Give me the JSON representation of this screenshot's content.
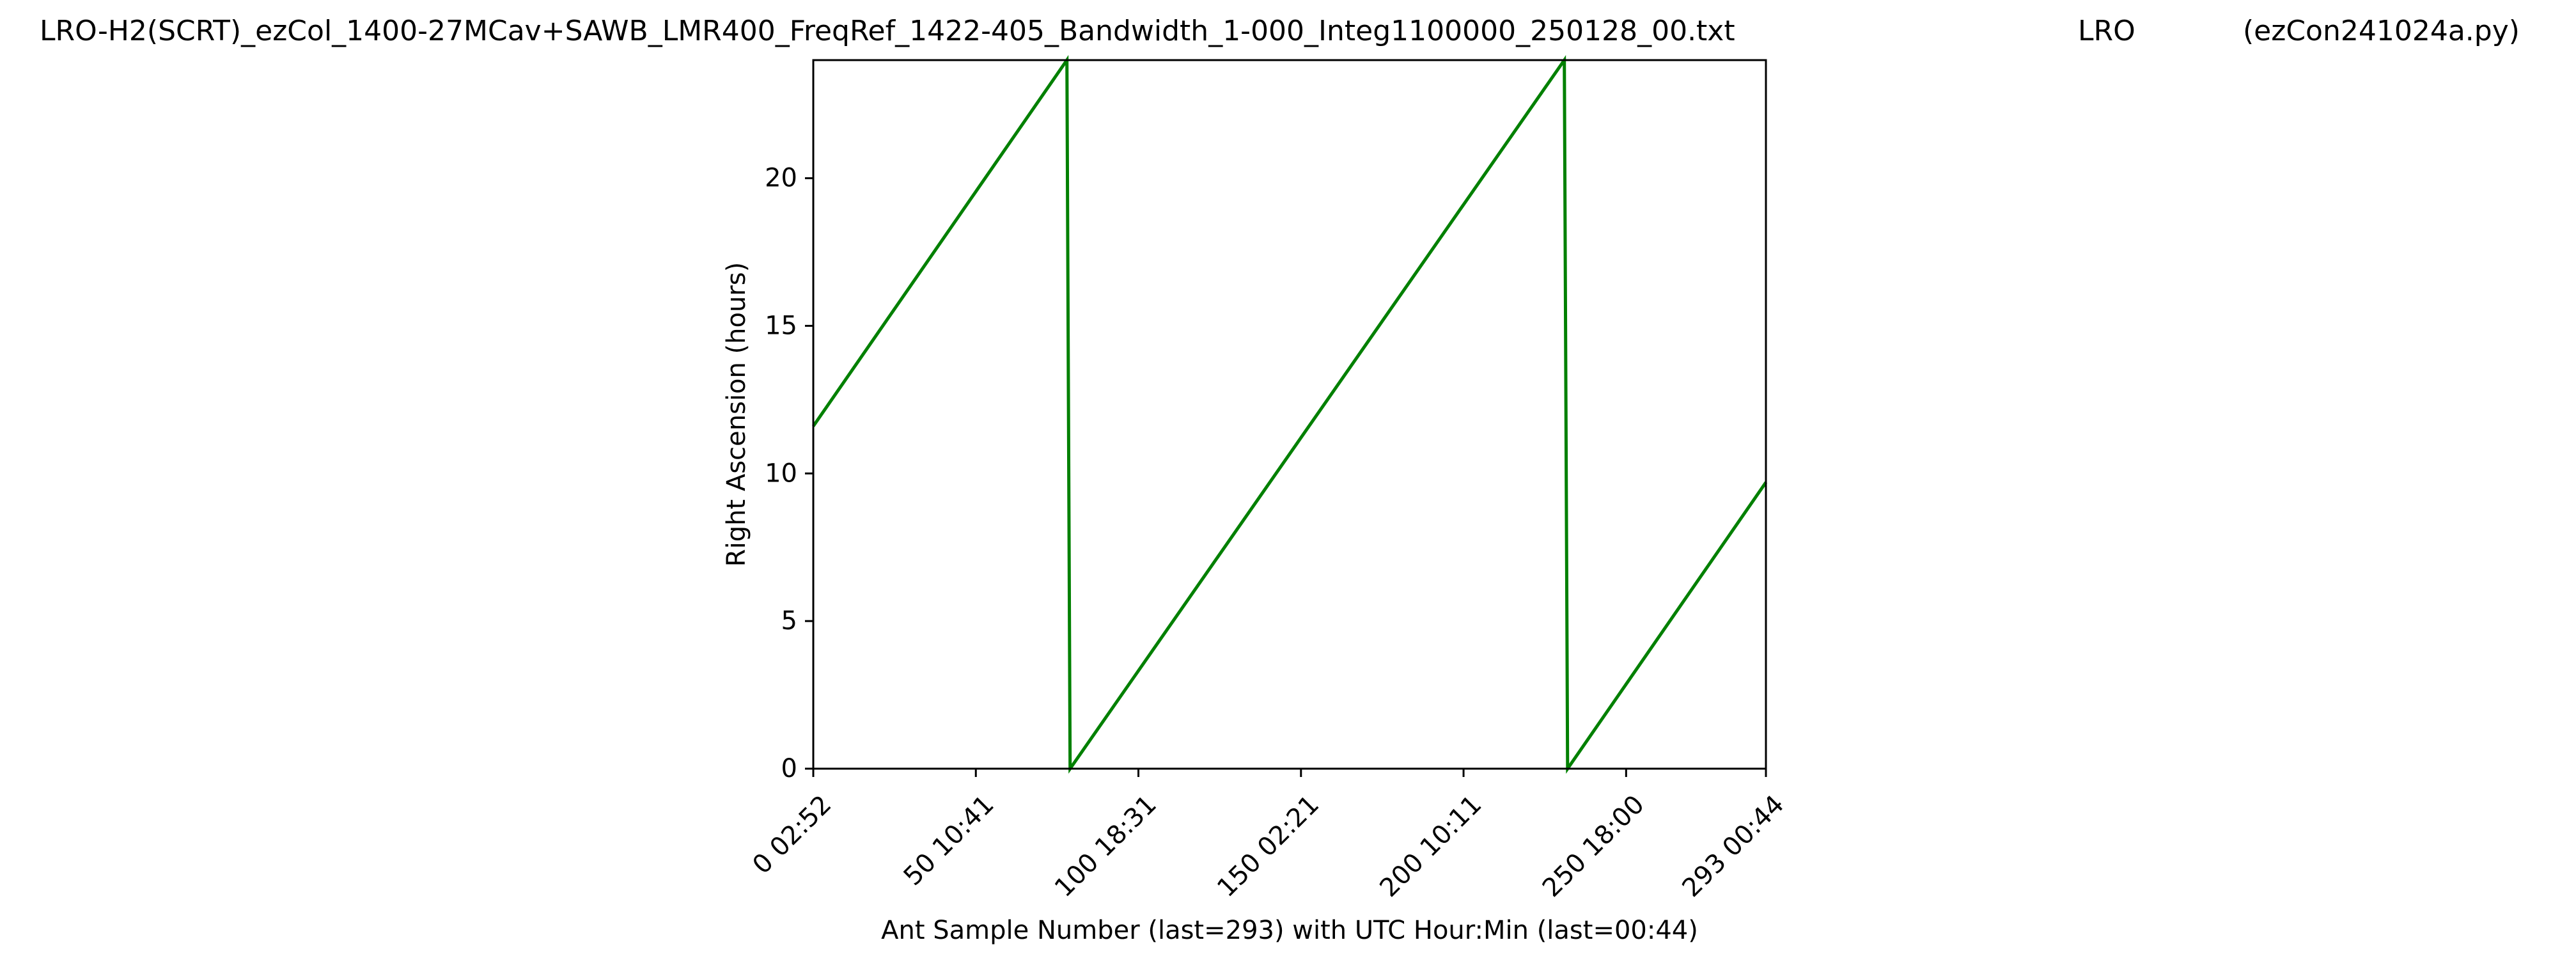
{
  "header": {
    "filename": "LRO-H2(SCRT)_ezCol_1400-27MCav+SAWB_LMR400_FreqRef_1422-405_Bandwidth_1-000_Integ1100000_250128_00.txt",
    "site": "LRO",
    "program": "(ezCon241024a.py)"
  },
  "chart_data": {
    "type": "line",
    "xlabel": "Ant Sample Number (last=293) with UTC Hour:Min (last=00:44)",
    "ylabel": "Right Ascension (hours)",
    "xlim": [
      0,
      293
    ],
    "ylim": [
      0,
      24
    ],
    "grid": false,
    "legend": "none",
    "line_color": "#008000",
    "x_ticks": [
      {
        "value": 0,
        "label": "0  02:52"
      },
      {
        "value": 50,
        "label": "50  10:41"
      },
      {
        "value": 100,
        "label": "100  18:31"
      },
      {
        "value": 150,
        "label": "150  02:21"
      },
      {
        "value": 200,
        "label": "200  10:11"
      },
      {
        "value": 250,
        "label": "250  18:00"
      },
      {
        "value": 293,
        "label": "293  00:44"
      }
    ],
    "y_ticks": [
      {
        "value": 0,
        "label": "0"
      },
      {
        "value": 5,
        "label": "5"
      },
      {
        "value": 10,
        "label": "10"
      },
      {
        "value": 15,
        "label": "15"
      },
      {
        "value": 20,
        "label": "20"
      }
    ],
    "series": [
      {
        "x": [
          0,
          78,
          79,
          231,
          232,
          293
        ],
        "y": [
          11.6,
          24.0,
          0.0,
          24.0,
          0.0,
          9.7
        ]
      }
    ]
  }
}
